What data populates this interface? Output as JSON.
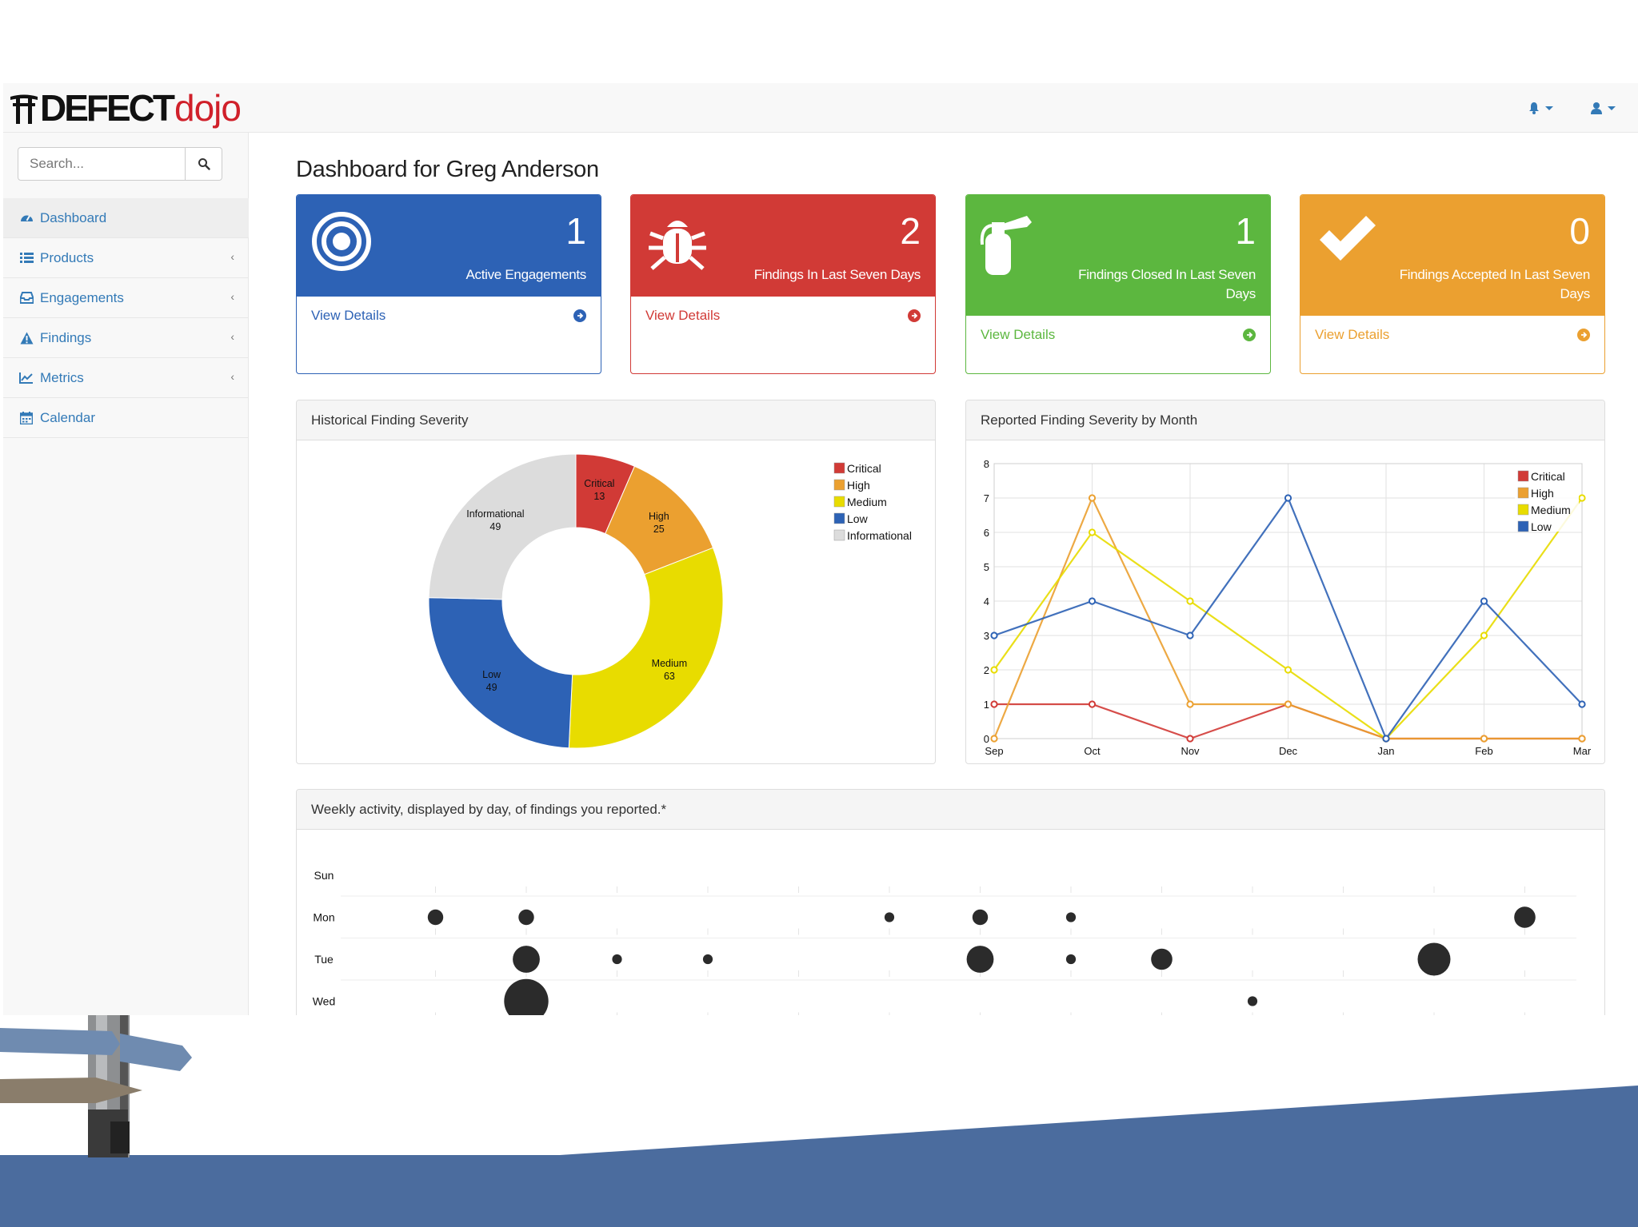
{
  "app": {
    "logo_main": "DEFECT",
    "logo_accent": "dojo"
  },
  "search": {
    "placeholder": "Search..."
  },
  "sidebar": {
    "items": [
      {
        "label": "Dashboard",
        "icon": "dashboard-icon",
        "active": true,
        "expandable": false
      },
      {
        "label": "Products",
        "icon": "list-icon",
        "active": false,
        "expandable": true
      },
      {
        "label": "Engagements",
        "icon": "inbox-icon",
        "active": false,
        "expandable": true
      },
      {
        "label": "Findings",
        "icon": "warning-icon",
        "active": false,
        "expandable": true
      },
      {
        "label": "Metrics",
        "icon": "line-chart-icon",
        "active": false,
        "expandable": true
      },
      {
        "label": "Calendar",
        "icon": "calendar-icon",
        "active": false,
        "expandable": false
      }
    ]
  },
  "page": {
    "title": "Dashboard for Greg Anderson"
  },
  "cards": [
    {
      "count": "1",
      "label": "Active Engagements",
      "link": "View Details",
      "icon": "bullseye-icon",
      "color": "#2d62b5"
    },
    {
      "count": "2",
      "label": "Findings In Last Seven Days",
      "link": "View Details",
      "icon": "bug-icon",
      "color": "#d13a36"
    },
    {
      "count": "1",
      "label": "Findings Closed In Last Seven Days",
      "link": "View Details",
      "icon": "fire-extinguisher-icon",
      "color": "#5cb73f"
    },
    {
      "count": "0",
      "label": "Findings Accepted In Last Seven Days",
      "link": "View Details",
      "icon": "check-icon",
      "color": "#eba030"
    }
  ],
  "panels": {
    "severity": "Historical Finding Severity",
    "by_month": "Reported Finding Severity by Month",
    "weekly": "Weekly activity, displayed by day, of findings you reported.*"
  },
  "colors": {
    "critical": "#d13a36",
    "high": "#eba030",
    "medium": "#e8dc00",
    "low": "#2d62b5",
    "informational": "#dcdcdc",
    "link": "#337ab7",
    "band": "#4b6c9e"
  },
  "chart_data": [
    {
      "type": "pie",
      "title": "Historical Finding Severity",
      "categories": [
        "Critical",
        "High",
        "Medium",
        "Low",
        "Informational"
      ],
      "values": [
        13,
        25,
        63,
        49,
        49
      ],
      "legend": "top-right"
    },
    {
      "type": "line",
      "title": "Reported Finding Severity by Month",
      "categories": [
        "Sep",
        "Oct",
        "Nov",
        "Dec",
        "Jan",
        "Feb",
        "Mar"
      ],
      "series": [
        {
          "name": "Critical",
          "values": [
            1,
            1,
            0,
            1,
            0,
            0,
            0
          ]
        },
        {
          "name": "High",
          "values": [
            0,
            7,
            1,
            1,
            0,
            0,
            0
          ]
        },
        {
          "name": "Medium",
          "values": [
            2,
            6,
            4,
            2,
            0,
            3,
            7
          ]
        },
        {
          "name": "Low",
          "values": [
            3,
            4,
            3,
            7,
            0,
            4,
            1
          ]
        }
      ],
      "ylim": [
        0,
        8
      ],
      "yticks": [
        "0",
        "1",
        "2",
        "3",
        "4",
        "5",
        "6",
        "7",
        "8"
      ],
      "grid": true,
      "legend": "top-right"
    },
    {
      "type": "scatter",
      "title": "Weekly activity, displayed by day, of findings you reported.*",
      "rows": [
        "Sun",
        "Mon",
        "Tue",
        "Wed"
      ],
      "points": [
        {
          "row": "Mon",
          "week": 1,
          "size": 2
        },
        {
          "row": "Mon",
          "week": 2,
          "size": 2
        },
        {
          "row": "Mon",
          "week": 6,
          "size": 1
        },
        {
          "row": "Mon",
          "week": 7,
          "size": 2
        },
        {
          "row": "Mon",
          "week": 8,
          "size": 1
        },
        {
          "row": "Mon",
          "week": 13,
          "size": 3
        },
        {
          "row": "Tue",
          "week": 2,
          "size": 4
        },
        {
          "row": "Tue",
          "week": 3,
          "size": 1
        },
        {
          "row": "Tue",
          "week": 4,
          "size": 1
        },
        {
          "row": "Tue",
          "week": 7,
          "size": 4
        },
        {
          "row": "Tue",
          "week": 8,
          "size": 1
        },
        {
          "row": "Tue",
          "week": 9,
          "size": 3
        },
        {
          "row": "Tue",
          "week": 12,
          "size": 5
        },
        {
          "row": "Wed",
          "week": 2,
          "size": 7
        },
        {
          "row": "Wed",
          "week": 10,
          "size": 1
        }
      ]
    }
  ]
}
